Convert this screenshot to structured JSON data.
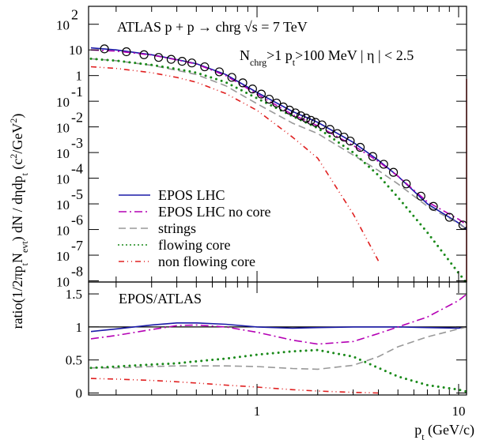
{
  "chart_data": [
    {
      "type": "line",
      "log_y": true,
      "legend": "lower-left",
      "title": "ATLAS p + p  → chrg √s = 7 TeV",
      "annotation": {
        "parts": [
          "N",
          {
            "text": "chrg",
            "pos": "sub"
          },
          ">1  p",
          {
            "text": "t",
            "pos": "sub"
          },
          ">100 MeV | η | < 2.5"
        ]
      },
      "ylabel": {
        "parts": [
          "ratio(1/2πp",
          {
            "text": "t",
            "pos": "sub"
          },
          "N",
          {
            "text": "evt",
            "pos": "sub"
          },
          ") dN / dηdp",
          {
            "text": "t",
            "pos": "sub"
          },
          " (c",
          {
            "text": "2",
            "pos": "sup"
          },
          "/GeV",
          {
            "text": "2",
            "pos": "sup"
          },
          ")"
        ]
      },
      "xlim": [
        0.146,
        10.95
      ],
      "ylim": [
        9e-09,
        500
      ],
      "yticks": [
        {
          "value": 1e-08,
          "label": "10",
          "sup": "-8"
        },
        {
          "value": 1e-07,
          "label": "10",
          "sup": "-7"
        },
        {
          "value": 1e-06,
          "label": "10",
          "sup": "-6"
        },
        {
          "value": 1e-05,
          "label": "10",
          "sup": "-5"
        },
        {
          "value": 0.0001,
          "label": "10",
          "sup": "-4"
        },
        {
          "value": 0.001,
          "label": "10",
          "sup": "-3"
        },
        {
          "value": 0.01,
          "label": "10",
          "sup": "-2"
        },
        {
          "value": 0.1,
          "label": "10",
          "sup": "-1"
        },
        1,
        10,
        {
          "value": 100,
          "label": "10",
          "sup": "2"
        }
      ],
      "x": [
        0.15,
        0.2,
        0.3,
        0.4,
        0.5,
        0.7,
        1,
        1.5,
        2,
        3,
        4,
        5,
        7,
        10,
        11
      ],
      "series": [
        {
          "name": "EPOS LHC",
          "color": "#1a1aa8",
          "dash": "solid",
          "values": [
            12,
            10,
            6.5,
            4.2,
            2.9,
            1.1,
            0.22,
            0.04,
            0.015,
            0.0025,
            0.0005,
            0.00012,
            1e-05,
            1.8e-06,
            1e-06
          ]
        },
        {
          "name": "EPOS LHC no core",
          "color": "#b400b4",
          "dash": "dashdot",
          "values": [
            10,
            9,
            6.3,
            4.1,
            2.8,
            1.0,
            0.19,
            0.03,
            0.011,
            0.0019,
            0.00045,
            0.00012,
            1.2e-05,
            2.5e-06,
            1.5e-06
          ]
        },
        {
          "name": "strings",
          "color": "#999999",
          "dash": "dashed",
          "values": [
            4.5,
            3.8,
            2.5,
            1.6,
            1.1,
            0.4,
            0.08,
            0.014,
            0.0055,
            0.0008,
            0.0002,
            6e-05,
            8e-06,
            1.7e-06,
            1e-06
          ]
        },
        {
          "name": "flowing core",
          "color": "#1a8a1a",
          "dash": "dotted",
          "values": [
            4.5,
            3.8,
            2.6,
            1.8,
            1.3,
            0.55,
            0.13,
            0.026,
            0.009,
            0.001,
            0.00013,
            1.8e-05,
            7.6e-07,
            2e-08,
            8e-09
          ]
        },
        {
          "name": "non flowing core",
          "color": "#e02020",
          "dash": "dashdotdot",
          "values": [
            2.2,
            1.9,
            1.3,
            0.85,
            0.55,
            0.2,
            0.044,
            0.004,
            0.0006,
            4e-06,
            6e-08,
            null,
            null,
            null,
            null
          ]
        }
      ],
      "data_points": {
        "color": "#000000",
        "marker": "circle",
        "x": [
          0.175,
          0.225,
          0.275,
          0.325,
          0.375,
          0.425,
          0.475,
          0.55,
          0.65,
          0.75,
          0.85,
          0.95,
          1.05,
          1.15,
          1.25,
          1.35,
          1.45,
          1.55,
          1.65,
          1.75,
          1.85,
          1.95,
          2.1,
          2.3,
          2.5,
          2.7,
          2.9,
          3.25,
          3.75,
          4.25,
          4.75,
          5.5,
          6.5,
          7.5,
          9,
          10.5
        ],
        "values": [
          11,
          8.5,
          6.5,
          5.1,
          4.3,
          3.6,
          3.1,
          2.2,
          1.4,
          0.85,
          0.52,
          0.3,
          0.19,
          0.12,
          0.085,
          0.06,
          0.045,
          0.035,
          0.027,
          0.022,
          0.018,
          0.015,
          0.012,
          0.008,
          0.0055,
          0.004,
          0.0028,
          0.0016,
          0.0007,
          0.00035,
          0.00017,
          6e-05,
          2e-05,
          8e-06,
          3e-06,
          1.5e-06
        ]
      }
    },
    {
      "type": "line",
      "log_y": false,
      "label": "EPOS/ATLAS",
      "xlabel": {
        "parts": [
          "p",
          {
            "text": "t",
            "pos": "sub"
          },
          " (GeV/c)"
        ]
      },
      "xlim": [
        0.146,
        10.95
      ],
      "xticks": [
        1,
        10
      ],
      "xminor": [
        0.2,
        0.3,
        0.4,
        0.5,
        0.6,
        0.7,
        0.8,
        0.9,
        2,
        3,
        4,
        5,
        6,
        7,
        8,
        9
      ],
      "ylim": [
        -0.03,
        1.68
      ],
      "yticks": [
        0,
        0.5,
        1,
        1.5
      ],
      "reference": 1,
      "x": [
        0.15,
        0.2,
        0.3,
        0.4,
        0.5,
        0.7,
        1,
        1.5,
        2,
        3,
        4,
        5,
        7,
        10,
        11
      ],
      "series": [
        {
          "color": "#1a1aa8",
          "dash": "solid",
          "values": [
            0.93,
            0.97,
            1.03,
            1.06,
            1.06,
            1.04,
            1.0,
            0.98,
            0.99,
            1.0,
            1.0,
            1.0,
            0.99,
            0.98,
            1.0
          ]
        },
        {
          "color": "#b400b4",
          "dash": "dashdot",
          "values": [
            0.82,
            0.87,
            0.96,
            1.02,
            1.03,
            1.0,
            0.92,
            0.8,
            0.74,
            0.78,
            0.9,
            1.0,
            1.15,
            1.4,
            1.5
          ]
        },
        {
          "color": "#999999",
          "dash": "dashed",
          "values": [
            0.38,
            0.38,
            0.4,
            0.41,
            0.41,
            0.41,
            0.4,
            0.37,
            0.36,
            0.42,
            0.55,
            0.7,
            0.85,
            0.97,
            1.0
          ]
        },
        {
          "color": "#1a8a1a",
          "dash": "dotted",
          "values": [
            0.38,
            0.4,
            0.43,
            0.45,
            0.48,
            0.52,
            0.58,
            0.63,
            0.65,
            0.55,
            0.38,
            0.25,
            0.12,
            0.05,
            0.02
          ]
        },
        {
          "color": "#e02020",
          "dash": "dashdotdot",
          "values": [
            0.22,
            0.21,
            0.19,
            0.17,
            0.15,
            0.12,
            0.09,
            0.05,
            0.03,
            0.01,
            0.0,
            null,
            null,
            null,
            null
          ]
        }
      ]
    }
  ]
}
